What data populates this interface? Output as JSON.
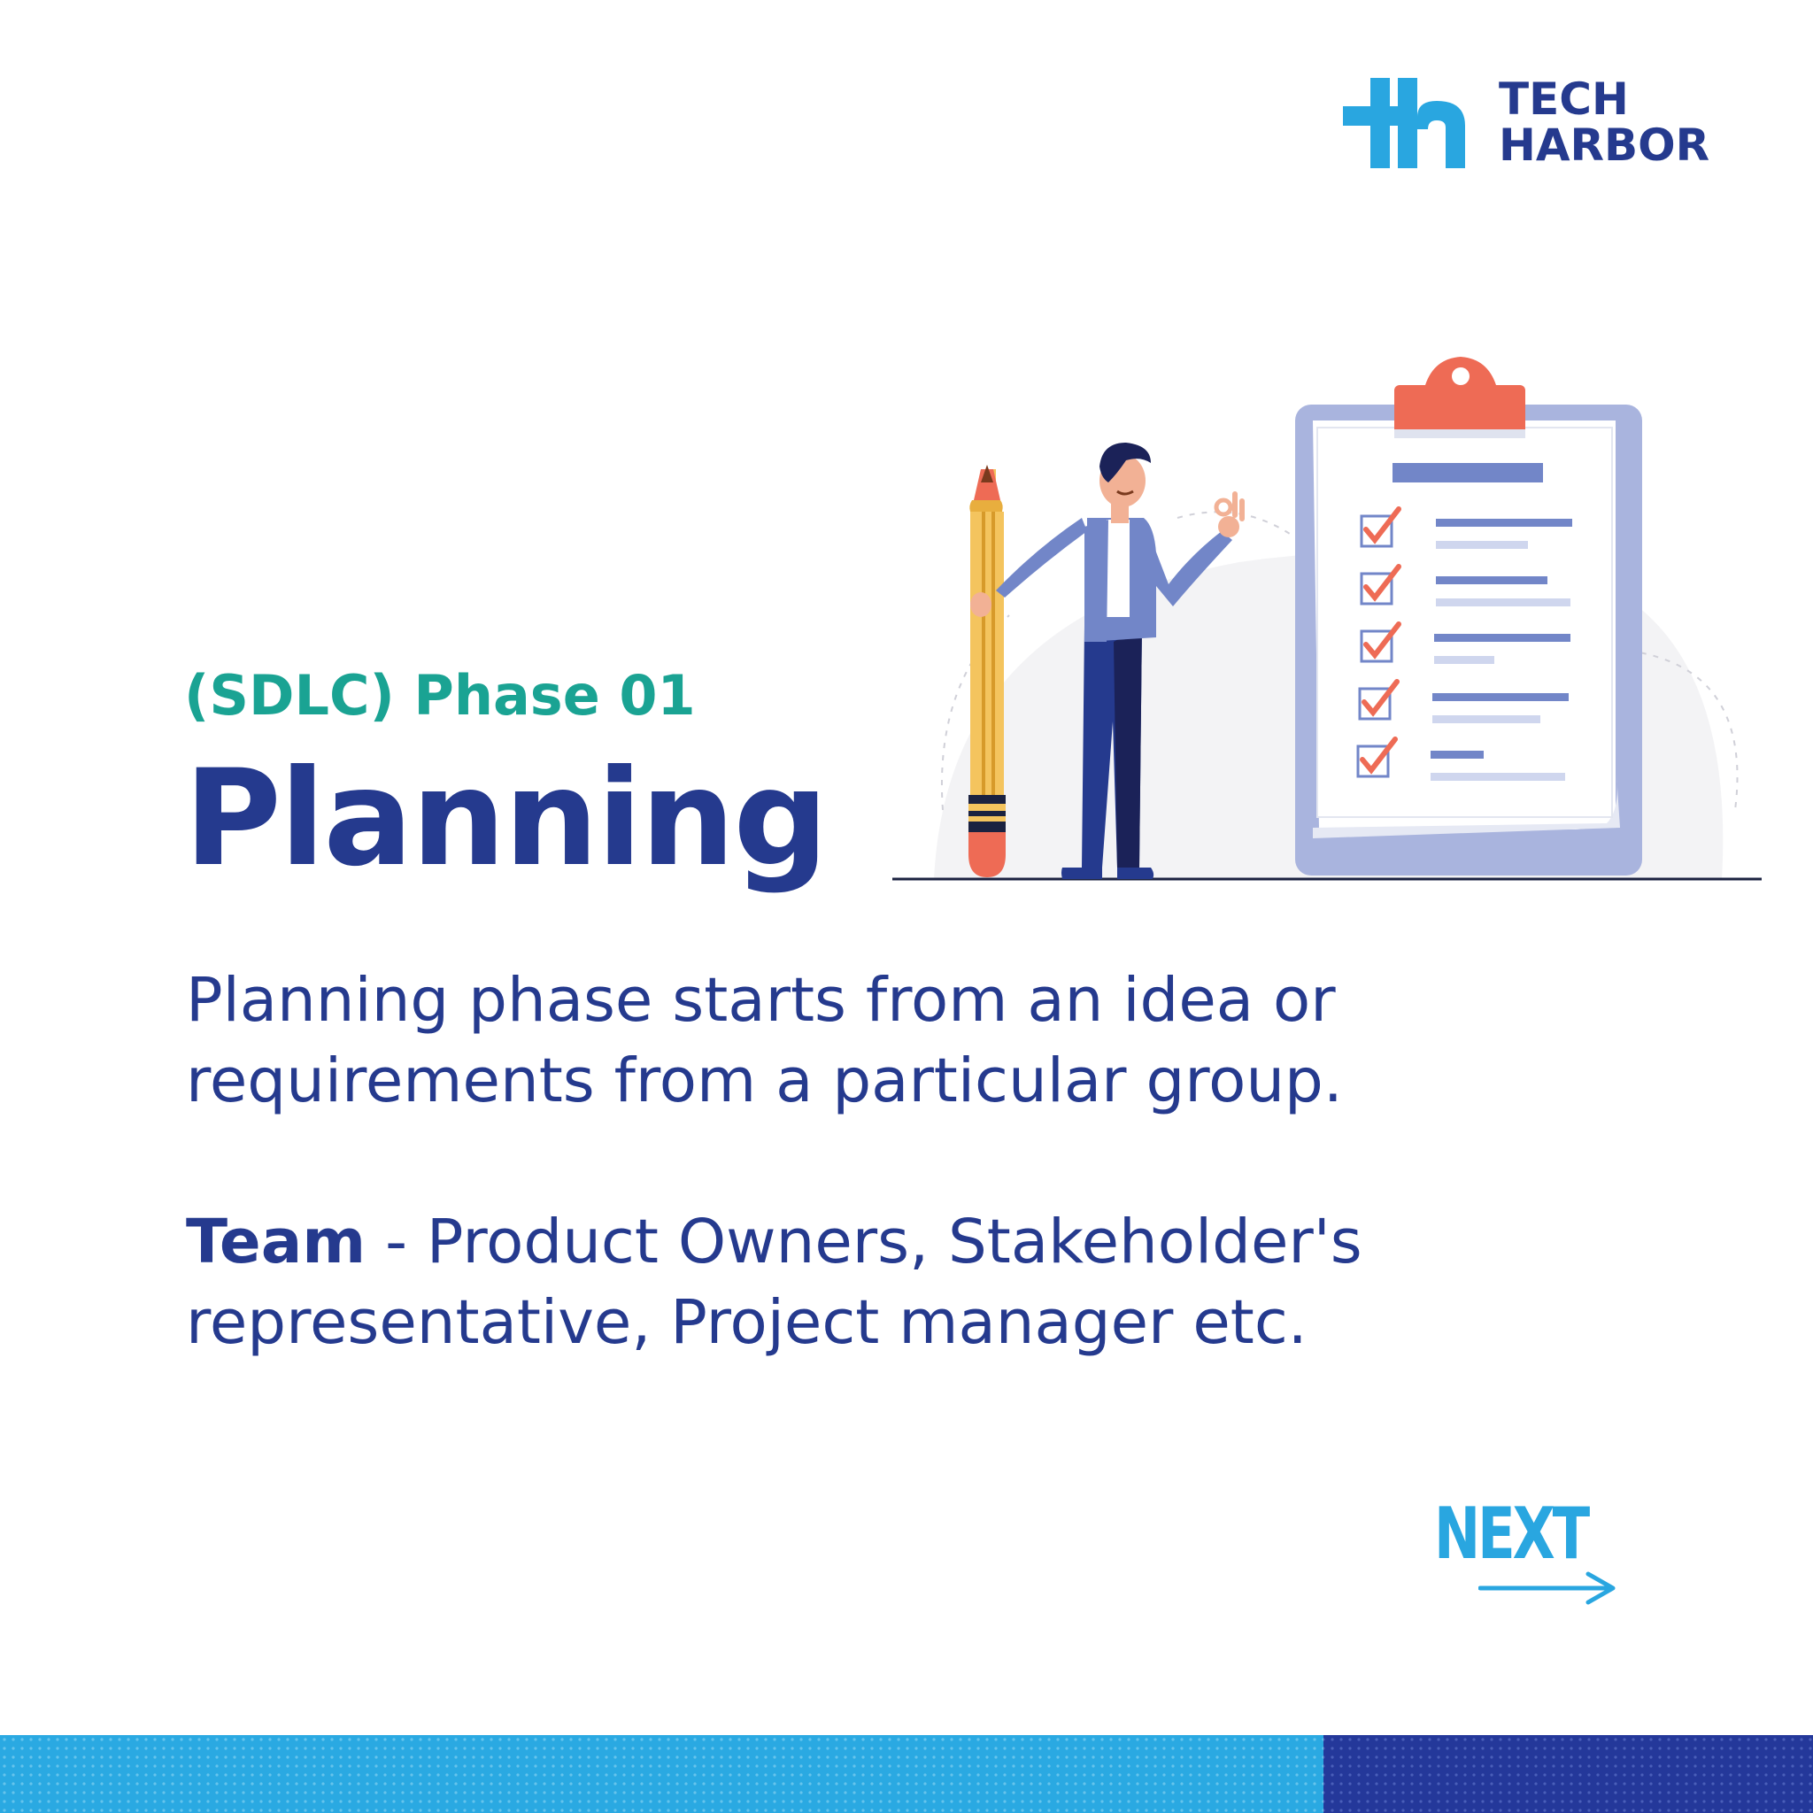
{
  "brand": {
    "line1": "TECH",
    "line2": "HARBOR",
    "logo_icon": "th-monogram-logo",
    "colors": {
      "dark_blue": "#253a8e",
      "light_blue": "#29a6e0"
    }
  },
  "eyebrow": "(SDLC) Phase 01",
  "title": "Planning",
  "description": "Planning phase starts from an idea or requirements from a particular group.",
  "team": {
    "label": "Team",
    "text": " - Product Owners, Stakeholder's representative, Project manager etc."
  },
  "next": {
    "label": "NEXT",
    "icon": "arrow-right-icon"
  },
  "illustration": {
    "subject": "person-with-pencil-and-checklist-clipboard",
    "checklist_items_checked": 5
  },
  "colors": {
    "teal": "#1aa393",
    "accent_orange": "#ee6b55",
    "clipboard_lavender": "#a9b4de",
    "band_light": "#2aa9e2",
    "band_dark": "#24389a"
  }
}
